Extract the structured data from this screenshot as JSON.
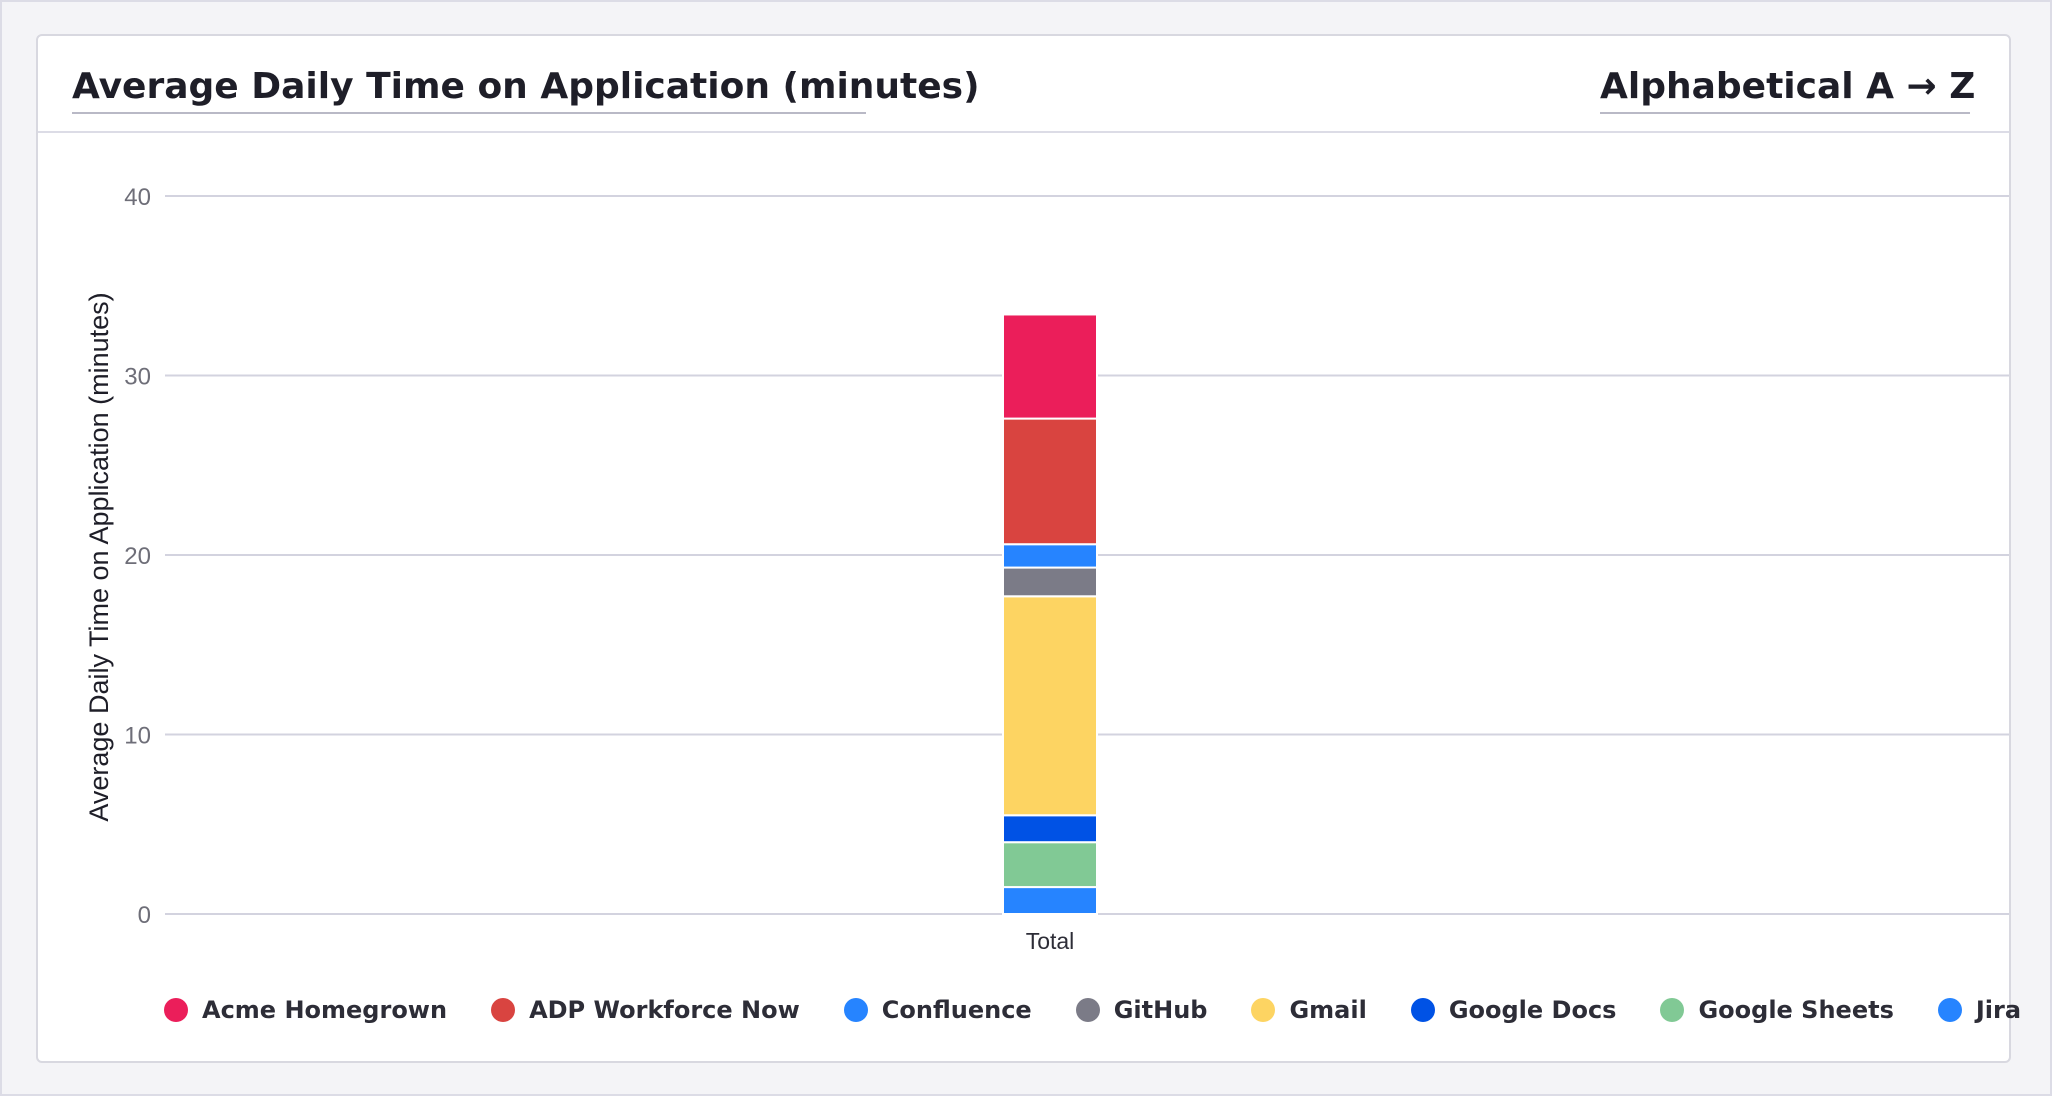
{
  "header": {
    "metric_label": "Average Daily Time on Application (minutes)",
    "sort_label": "Alphabetical A → Z"
  },
  "chart_data": {
    "type": "bar",
    "stacked": true,
    "categories": [
      "Total"
    ],
    "ylabel": "Average Daily Time on Application (minutes)",
    "xlabel": "",
    "ylim": [
      0,
      40
    ],
    "yticks": [
      0,
      10,
      20,
      30,
      40
    ],
    "grid": true,
    "legend_position": "bottom",
    "series": [
      {
        "name": "Jira",
        "values": [
          1.5
        ],
        "color": "#2684ff"
      },
      {
        "name": "Google Sheets",
        "values": [
          2.5
        ],
        "color": "#81c995"
      },
      {
        "name": "Google Docs",
        "values": [
          1.5
        ],
        "color": "#0052e5"
      },
      {
        "name": "Gmail",
        "values": [
          12.2
        ],
        "color": "#fdd462"
      },
      {
        "name": "GitHub",
        "values": [
          1.6
        ],
        "color": "#7b7b87"
      },
      {
        "name": "Confluence",
        "values": [
          1.3
        ],
        "color": "#2684ff"
      },
      {
        "name": "ADP Workforce Now",
        "values": [
          7.0
        ],
        "color": "#d94440"
      },
      {
        "name": "Acme Homegrown",
        "values": [
          5.8
        ],
        "color": "#eb1e5a"
      }
    ]
  },
  "legend": [
    {
      "name": "Acme Homegrown",
      "color": "#eb1e5a"
    },
    {
      "name": "ADP Workforce Now",
      "color": "#d94440"
    },
    {
      "name": "Confluence",
      "color": "#2684ff"
    },
    {
      "name": "GitHub",
      "color": "#7b7b87"
    },
    {
      "name": "Gmail",
      "color": "#fdd462"
    },
    {
      "name": "Google Docs",
      "color": "#0052e5"
    },
    {
      "name": "Google Sheets",
      "color": "#81c995"
    },
    {
      "name": "Jira",
      "color": "#2684ff"
    }
  ],
  "icons": {
    "metric_dropdown": "chevron-down-icon",
    "sort_dropdown": "chevron-down-icon"
  }
}
